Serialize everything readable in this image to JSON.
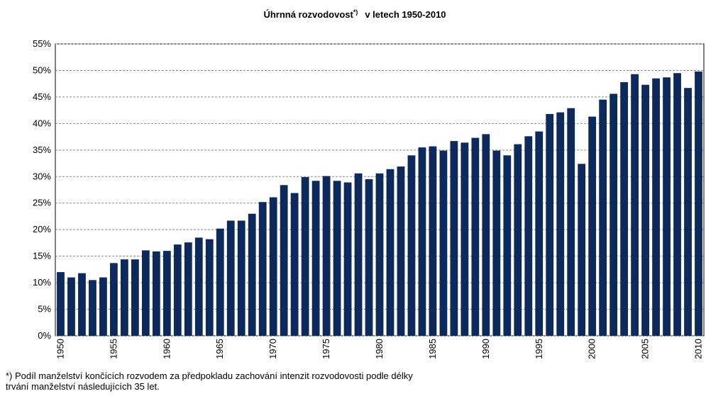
{
  "chart_data": {
    "type": "bar",
    "title": {
      "main": "Úhrnná rozvodovost",
      "sup": "*)",
      "rest": "v letech 1950-2010"
    },
    "categories": [
      "1950",
      null,
      null,
      null,
      null,
      "1955",
      null,
      null,
      null,
      null,
      "1960",
      null,
      null,
      null,
      null,
      "1965",
      null,
      null,
      null,
      null,
      "1970",
      null,
      null,
      null,
      null,
      "1975",
      null,
      null,
      null,
      null,
      "1980",
      null,
      null,
      null,
      null,
      "1985",
      null,
      null,
      null,
      null,
      "1990",
      null,
      null,
      null,
      null,
      "1995",
      null,
      null,
      null,
      null,
      "2000",
      null,
      null,
      null,
      null,
      "2005",
      null,
      null,
      null,
      null,
      "2010"
    ],
    "values": [
      12.0,
      11.0,
      11.8,
      10.5,
      11.0,
      13.7,
      14.4,
      14.4,
      16.1,
      15.9,
      16.0,
      17.2,
      17.6,
      18.5,
      18.2,
      20.2,
      21.7,
      21.7,
      23.0,
      25.2,
      26.1,
      28.4,
      26.9,
      29.9,
      29.2,
      30.1,
      29.2,
      28.9,
      30.6,
      29.5,
      30.6,
      31.4,
      31.9,
      34.0,
      35.5,
      35.7,
      34.9,
      36.7,
      36.4,
      37.3,
      38.0,
      34.9,
      34.0,
      36.1,
      37.6,
      38.5,
      41.8,
      42.1,
      42.9,
      32.4,
      41.3,
      44.5,
      45.6,
      47.8,
      49.3,
      47.3,
      48.5,
      48.7,
      49.5,
      46.7,
      49.8
    ],
    "color": "#0c2a5c",
    "ylim": [
      0,
      55
    ],
    "yticks": [
      {
        "value": 0,
        "label": "0%"
      },
      {
        "value": 5,
        "label": "5%"
      },
      {
        "value": 10,
        "label": "10%"
      },
      {
        "value": 15,
        "label": "15%"
      },
      {
        "value": 20,
        "label": "20%"
      },
      {
        "value": 25,
        "label": "25%"
      },
      {
        "value": 30,
        "label": "30%"
      },
      {
        "value": 35,
        "label": "35%"
      },
      {
        "value": 40,
        "label": "40%"
      },
      {
        "value": 45,
        "label": "45%"
      },
      {
        "value": 50,
        "label": "50%"
      },
      {
        "value": 55,
        "label": "55%"
      }
    ],
    "grid": true,
    "notes": [
      "*) Podíl manželství končících rozvodem za předpokladu zachování intenzit rozvodovosti podle délky",
      "trvání manželství následujících 35 let."
    ]
  }
}
